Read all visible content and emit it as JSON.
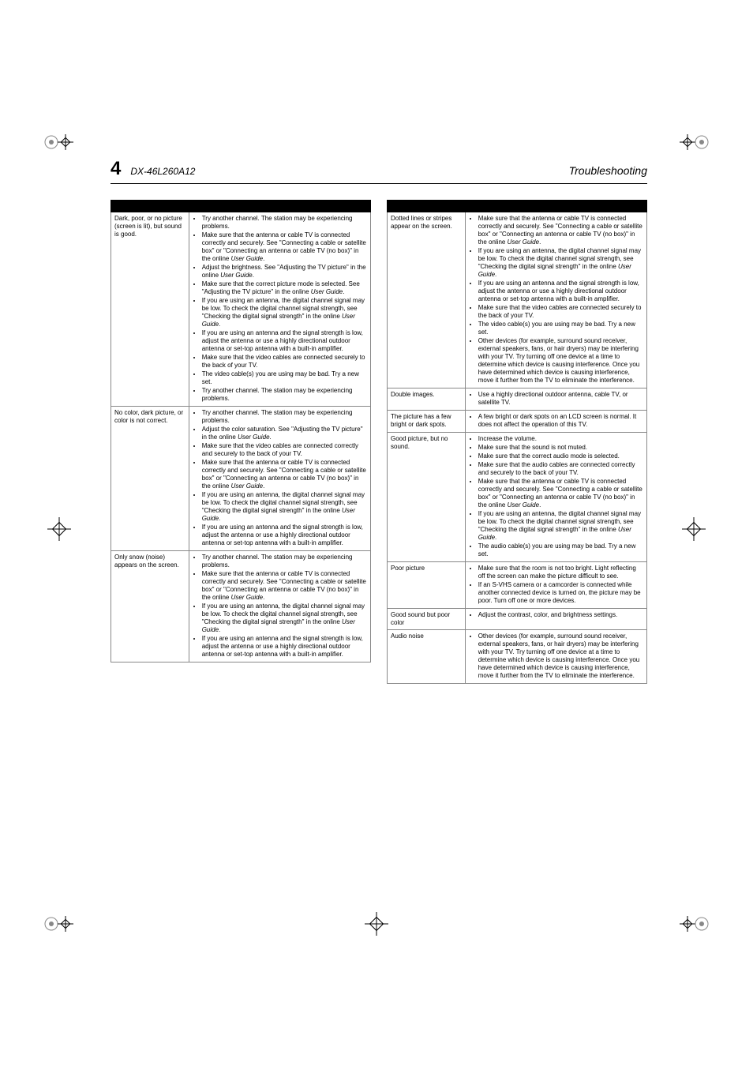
{
  "page_number": "4",
  "model": "DX-46L260A12",
  "section": "Troubleshooting",
  "user_guide_term": "User Guide",
  "left_table": [
    {
      "problem": "Dark, poor, or no picture (screen is lit), but sound is good.",
      "items": [
        "Try another channel. The station may be experiencing problems.",
        "Make sure that the antenna or cable TV is connected correctly and securely. See \"Connecting a cable or satellite box\" or \"Connecting an antenna or cable TV (no box)\" in the online <i>User Guide</i>.",
        "Adjust the brightness. See \"Adjusting the TV picture\" in the online <i>User Guide</i>.",
        "Make sure that the correct picture mode is selected. See \"Adjusting the TV picture\" in the online <i>User Guide</i>.",
        "If you are using an antenna, the digital channel signal may be low. To check the digital channel signal strength, see \"Checking the digital signal strength\" in the online <i>User Guide</i>.",
        "If you are using an antenna and the signal strength is low, adjust the antenna or use a highly directional outdoor antenna or set-top antenna with a built-in amplifier.",
        "Make sure that the video cables are connected securely to the back of your TV.",
        "The video cable(s) you are using may be bad. Try a new set.",
        "Try another channel. The station may be experiencing problems."
      ]
    },
    {
      "problem": "No color, dark picture, or color is not correct.",
      "items": [
        "Try another channel. The station may be experiencing problems.",
        "Adjust the color saturation. See \"Adjusting the TV picture\" in the online <i>User Guide</i>.",
        "Make sure that the video cables are connected correctly and securely to the back of your TV.",
        "Make sure that the antenna or cable TV is connected correctly and securely. See \"Connecting a cable or satellite box\" or \"Connecting an antenna or cable TV (no box)\" in the online <i>User Guide</i>.",
        "If you are using an antenna, the digital channel signal may be low. To check the digital channel signal strength, see \"Checking the digital signal strength\" in the online <i>User Guide</i>.",
        "If you are using an antenna and the signal strength is low, adjust the antenna or use a highly directional outdoor antenna or set-top antenna with a built-in amplifier."
      ]
    },
    {
      "problem": "Only snow (noise) appears on the screen.",
      "items": [
        "Try another channel. The station may be experiencing problems.",
        "Make sure that the antenna or cable TV is connected correctly and securely. See \"Connecting a cable or satellite box\" or \"Connecting an antenna or cable TV (no box)\" in the online <i>User Guide</i>.",
        "If you are using an antenna, the digital channel signal may be low. To check the digital channel signal strength, see \"Checking the digital signal strength\" in the online <i>User Guide</i>.",
        "If you are using an antenna and the signal strength is low, adjust the antenna or use a highly directional outdoor antenna or set-top antenna with a built-in amplifier."
      ]
    }
  ],
  "right_table": [
    {
      "problem": "Dotted lines or stripes appear on the screen.",
      "items": [
        "Make sure that the antenna or cable TV is connected correctly and securely. See \"Connecting a cable or satellite box\" or \"Connecting an antenna or cable TV (no box)\" in the online <i>User Guide</i>.",
        "If you are using an antenna, the digital channel signal may be low. To check the digital channel signal strength, see \"Checking the digital signal strength\" in the online <i>User Guide</i>.",
        "If you are using an antenna and the signal strength is low, adjust the antenna or use a highly directional outdoor antenna or set-top antenna with a built-in amplifier.",
        "Make sure that the video cables are connected securely to the back of your TV.",
        "The video cable(s) you are using may be bad. Try a new set.",
        "Other devices (for example, surround sound receiver, external speakers, fans, or hair dryers) may be interfering with your TV. Try turning off one device at a time to determine which device is causing interference. Once you have determined which device is causing interference, move it further from the TV to eliminate the interference."
      ]
    },
    {
      "problem": "Double images.",
      "items": [
        "Use a highly directional outdoor antenna, cable TV, or satellite TV."
      ]
    },
    {
      "problem": "The picture has a few bright or dark spots.",
      "items": [
        "A few bright or dark spots on an LCD screen is normal. It does not affect the operation of this TV."
      ]
    },
    {
      "problem": "Good picture, but no sound.",
      "items": [
        "Increase the volume.",
        "Make sure that the sound is not muted.",
        "Make sure that the correct audio mode is selected.",
        "Make sure that the audio cables are connected correctly and securely to the back of your TV.",
        "Make sure that the antenna or cable TV is connected correctly and securely. See \"Connecting a cable or satellite box\" or \"Connecting an antenna or cable TV (no box)\" in the online <i>User Guide</i>.",
        "If you are using an antenna, the digital channel signal may be low. To check the digital channel signal strength, see \"Checking the digital signal strength\" in the online <i>User Guide</i>.",
        "The audio cable(s) you are using may be bad. Try a new set."
      ]
    },
    {
      "problem": "Poor picture",
      "items": [
        "Make sure that the room is not too bright. Light reflecting off the screen can make the picture difficult to see.",
        "If an S-VHS camera or a camcorder is connected while another connected device is turned on, the picture may be poor. Turn off one or more devices."
      ]
    },
    {
      "problem": "Good sound but poor color",
      "items": [
        "Adjust the contrast, color, and brightness settings."
      ]
    },
    {
      "problem": "Audio noise",
      "items": [
        "Other devices (for example, surround sound receiver, external speakers, fans, or hair dryers) may be interfering with your TV. Try turning off one device at a time to determine which device is causing interference. Once you have determined which device is causing interference, move it further from the TV to eliminate the interference."
      ]
    }
  ]
}
